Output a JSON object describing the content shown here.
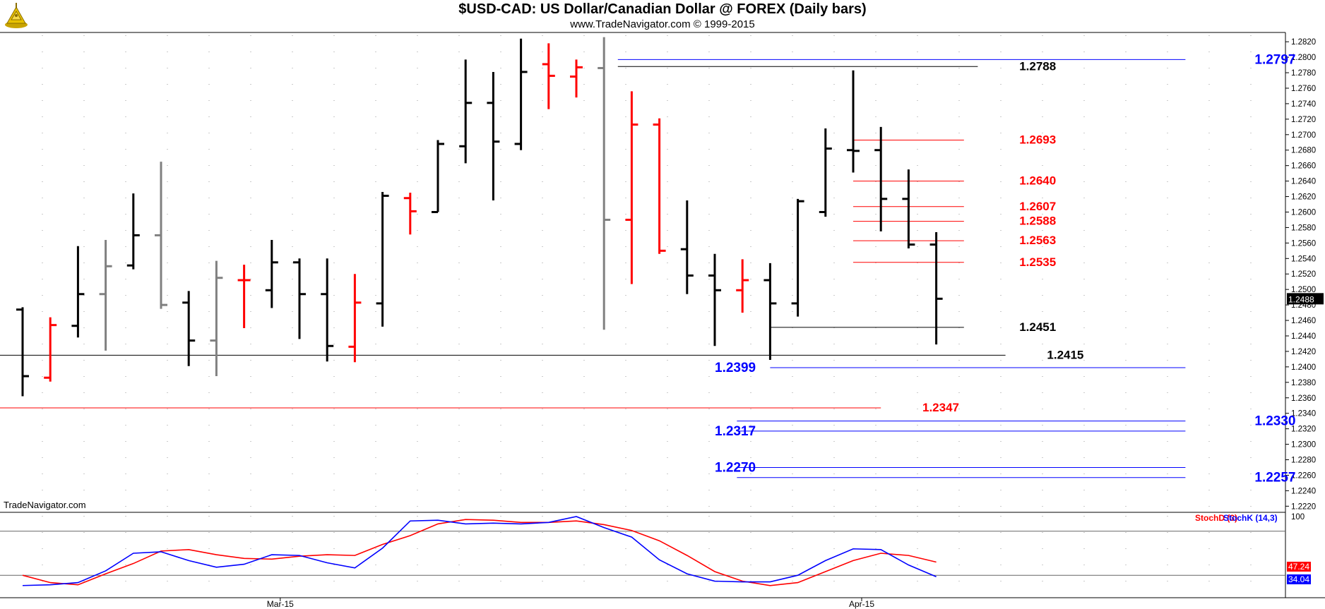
{
  "header": {
    "title": "$USD-CAD:  US Dollar/Canadian Dollar @ FOREX  (Daily bars)",
    "subtitle": "www.TradeNavigator.com © 1999-2015"
  },
  "watermark": "TradeNavigator.com",
  "colors": {
    "up": "#000000",
    "down": "#ff0000",
    "neutral": "#808080",
    "blue": "#0000ff",
    "red": "#ff0000",
    "black": "#000000"
  },
  "chart_data": [
    {
      "type": "ohlc",
      "ylim": [
        1.2213,
        1.2832
      ],
      "y_ticks": [
        "1.2220",
        "1.2240",
        "1.2260",
        "1.2280",
        "1.2300",
        "1.2320",
        "1.2340",
        "1.2360",
        "1.2380",
        "1.2400",
        "1.2420",
        "1.2440",
        "1.2460",
        "1.2480",
        "1.2500",
        "1.2520",
        "1.2540",
        "1.2560",
        "1.2580",
        "1.2600",
        "1.2620",
        "1.2640",
        "1.2660",
        "1.2680",
        "1.2700",
        "1.2720",
        "1.2740",
        "1.2760",
        "1.2780",
        "1.2800",
        "1.2820"
      ],
      "x_ticks": [
        {
          "label": "Mar-15",
          "bar": 9
        },
        {
          "label": "Apr-15",
          "bar": 30
        }
      ],
      "last_price": "1.2488",
      "bars": [
        {
          "o": 1.2474,
          "h": 1.2477,
          "l": 1.2362,
          "c": 1.2388,
          "color": "up"
        },
        {
          "o": 1.2386,
          "h": 1.2464,
          "l": 1.2381,
          "c": 1.2454,
          "color": "down"
        },
        {
          "o": 1.2453,
          "h": 1.2556,
          "l": 1.2438,
          "c": 1.2494,
          "color": "up"
        },
        {
          "o": 1.2494,
          "h": 1.2564,
          "l": 1.2421,
          "c": 1.253,
          "color": "neutral"
        },
        {
          "o": 1.2531,
          "h": 1.2624,
          "l": 1.2526,
          "c": 1.257,
          "color": "up"
        },
        {
          "o": 1.257,
          "h": 1.2665,
          "l": 1.2475,
          "c": 1.248,
          "color": "neutral"
        },
        {
          "o": 1.2483,
          "h": 1.2498,
          "l": 1.2401,
          "c": 1.2434,
          "color": "up"
        },
        {
          "o": 1.2434,
          "h": 1.2537,
          "l": 1.2388,
          "c": 1.2515,
          "color": "neutral"
        },
        {
          "o": 1.2512,
          "h": 1.2532,
          "l": 1.245,
          "c": 1.2512,
          "color": "down"
        },
        {
          "o": 1.2499,
          "h": 1.2564,
          "l": 1.2476,
          "c": 1.2535,
          "color": "up"
        },
        {
          "o": 1.2535,
          "h": 1.254,
          "l": 1.2436,
          "c": 1.2494,
          "color": "up"
        },
        {
          "o": 1.2494,
          "h": 1.254,
          "l": 1.2407,
          "c": 1.2427,
          "color": "up"
        },
        {
          "o": 1.2426,
          "h": 1.252,
          "l": 1.2406,
          "c": 1.2483,
          "color": "down"
        },
        {
          "o": 1.2482,
          "h": 1.2626,
          "l": 1.2452,
          "c": 1.2621,
          "color": "up"
        },
        {
          "o": 1.2618,
          "h": 1.2625,
          "l": 1.2571,
          "c": 1.2601,
          "color": "down"
        },
        {
          "o": 1.26,
          "h": 1.2693,
          "l": 1.26,
          "c": 1.2688,
          "color": "up"
        },
        {
          "o": 1.2685,
          "h": 1.2797,
          "l": 1.2663,
          "c": 1.2741,
          "color": "up"
        },
        {
          "o": 1.2741,
          "h": 1.2781,
          "l": 1.2615,
          "c": 1.2691,
          "color": "up"
        },
        {
          "o": 1.2688,
          "h": 1.2824,
          "l": 1.268,
          "c": 1.2781,
          "color": "up"
        },
        {
          "o": 1.2791,
          "h": 1.2818,
          "l": 1.2733,
          "c": 1.2776,
          "color": "down"
        },
        {
          "o": 1.2775,
          "h": 1.2797,
          "l": 1.2748,
          "c": 1.2787,
          "color": "down"
        },
        {
          "o": 1.2786,
          "h": 1.2826,
          "l": 1.2448,
          "c": 1.259,
          "color": "neutral"
        },
        {
          "o": 1.259,
          "h": 1.2756,
          "l": 1.2507,
          "c": 1.2713,
          "color": "down"
        },
        {
          "o": 1.2713,
          "h": 1.2721,
          "l": 1.2546,
          "c": 1.255,
          "color": "down"
        },
        {
          "o": 1.2552,
          "h": 1.2615,
          "l": 1.2494,
          "c": 1.2518,
          "color": "up"
        },
        {
          "o": 1.2518,
          "h": 1.2546,
          "l": 1.2427,
          "c": 1.2499,
          "color": "up"
        },
        {
          "o": 1.2499,
          "h": 1.2539,
          "l": 1.247,
          "c": 1.2512,
          "color": "down"
        },
        {
          "o": 1.2512,
          "h": 1.2534,
          "l": 1.2409,
          "c": 1.2482,
          "color": "up"
        },
        {
          "o": 1.2482,
          "h": 1.2617,
          "l": 1.2465,
          "c": 1.2614,
          "color": "up"
        },
        {
          "o": 1.26,
          "h": 1.2708,
          "l": 1.2594,
          "c": 1.2682,
          "color": "up"
        },
        {
          "o": 1.268,
          "h": 1.2783,
          "l": 1.2651,
          "c": 1.2679,
          "color": "up"
        },
        {
          "o": 1.268,
          "h": 1.271,
          "l": 1.2575,
          "c": 1.2617,
          "color": "up"
        },
        {
          "o": 1.2617,
          "h": 1.2655,
          "l": 1.2553,
          "c": 1.2558,
          "color": "up"
        },
        {
          "o": 1.2558,
          "h": 1.2574,
          "l": 1.2429,
          "c": 1.2488,
          "color": "up"
        }
      ],
      "levels": [
        {
          "value": 1.2797,
          "label": "1.2797",
          "color": "blue",
          "x0": 21.5,
          "x1": 42,
          "label_at": 44.5
        },
        {
          "value": 1.2788,
          "label": "1.2788",
          "color": "black",
          "x0": 21.5,
          "x1": 34.5,
          "label_at": 36
        },
        {
          "value": 1.2693,
          "label": "1.2693",
          "color": "red",
          "x0": 30,
          "x1": 34,
          "label_at": 36
        },
        {
          "value": 1.264,
          "label": "1.2640",
          "color": "red",
          "x0": 30,
          "x1": 34,
          "label_at": 36
        },
        {
          "value": 1.2607,
          "label": "1.2607",
          "color": "red",
          "x0": 30,
          "x1": 34,
          "label_at": 36
        },
        {
          "value": 1.2588,
          "label": "1.2588",
          "color": "red",
          "x0": 30,
          "x1": 34,
          "label_at": 36
        },
        {
          "value": 1.2563,
          "label": "1.2563",
          "color": "red",
          "x0": 30,
          "x1": 34,
          "label_at": 36
        },
        {
          "value": 1.2535,
          "label": "1.2535",
          "color": "red",
          "x0": 30,
          "x1": 34,
          "label_at": 36
        },
        {
          "value": 1.2451,
          "label": "1.2451",
          "color": "black",
          "x0": 27,
          "x1": 34,
          "label_at": 36
        },
        {
          "value": 1.2415,
          "label": "1.2415",
          "color": "black",
          "x0": -1,
          "x1": 35.5,
          "label_at": 37
        },
        {
          "value": 1.2399,
          "label": "1.2399",
          "color": "blue",
          "x0": 27,
          "x1": 42,
          "label_at": 25
        },
        {
          "value": 1.2347,
          "label": "1.2347",
          "color": "red",
          "x0": -1,
          "x1": 31,
          "label_at": 32.5
        },
        {
          "value": 1.233,
          "label": "1.2330",
          "color": "blue",
          "x0": 25.8,
          "x1": 42,
          "label_at": 44.5
        },
        {
          "value": 1.2317,
          "label": "1.2317",
          "color": "blue",
          "x0": 25.8,
          "x1": 42,
          "label_at": 25
        },
        {
          "value": 1.227,
          "label": "1.2270",
          "color": "blue",
          "x0": 25.8,
          "x1": 42,
          "label_at": 25
        },
        {
          "value": 1.2257,
          "label": "1.2257",
          "color": "blue",
          "x0": 25.8,
          "x1": 42,
          "label_at": 44.5
        }
      ]
    },
    {
      "type": "line",
      "ylim": [
        0,
        100
      ],
      "y_ticks": [
        "100"
      ],
      "reference_lines": [
        80,
        20
      ],
      "series": [
        {
          "name": "StochD (3)",
          "color": "red",
          "value_label": "47.24",
          "values": [
            20,
            10,
            7,
            22,
            36,
            53,
            55,
            48,
            43,
            42,
            46,
            48,
            47,
            62,
            74,
            90,
            96,
            95,
            92,
            92,
            94,
            89,
            81,
            67,
            47,
            25,
            12,
            6,
            10,
            25,
            40,
            50,
            47,
            38
          ]
        },
        {
          "name": "StochK (14,3)",
          "color": "blue",
          "value_label": "34.04",
          "values": [
            6,
            7,
            10,
            26,
            50,
            52,
            40,
            31,
            35,
            48,
            47,
            37,
            30,
            57,
            94,
            95,
            90,
            91,
            90,
            92,
            100,
            85,
            72,
            41,
            22,
            12,
            11,
            11,
            20,
            40,
            56,
            55,
            34,
            18
          ]
        }
      ]
    }
  ]
}
